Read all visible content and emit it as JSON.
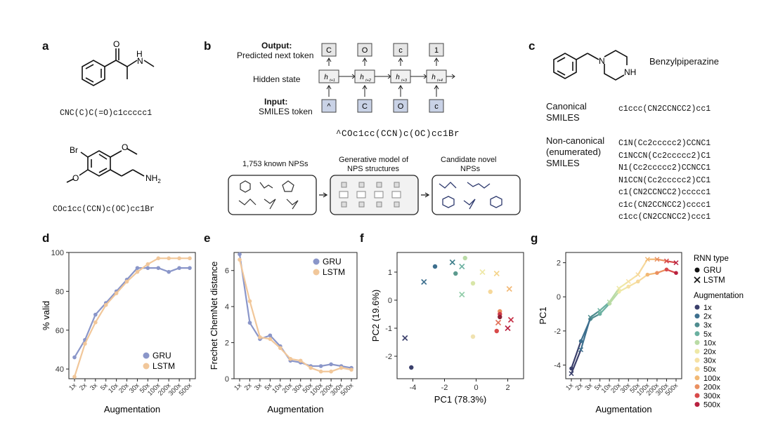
{
  "panels": {
    "a": {
      "label": "a",
      "mol1_smiles": "CNC(C)C(=O)c1ccccc1",
      "mol2_smiles": "COc1cc(CCN)c(OC)cc1Br",
      "mol2_atoms": {
        "br": "Br",
        "nh2": "NH",
        "nh2_sub": "2"
      },
      "mol1_atoms": {
        "o": "O",
        "nh": "H",
        "n": "N"
      }
    },
    "b": {
      "label": "b",
      "output_title": "Output:",
      "output_sub": "Predicted next token",
      "hidden_label": "Hidden state",
      "input_title": "Input:",
      "input_sub": "SMILES token",
      "output_tokens": [
        "C",
        "O",
        "c",
        "1"
      ],
      "input_tokens": [
        "^",
        "C",
        "O",
        "c"
      ],
      "hidden_tokens": [
        "h",
        "h",
        "h",
        "h"
      ],
      "hidden_subs": [
        "t+1",
        "t+2",
        "t+3",
        "t+4"
      ],
      "sequence": "^COc1cc(CCN)c(OC)cc1Br",
      "box1_title": "1,753 known NPSs",
      "box2_title_1": "Generative model of",
      "box2_title_2": "NPS structures",
      "box3_title_1": "Candidate novel",
      "box3_title_2": "NPSs"
    },
    "c": {
      "label": "c",
      "name": "Benzylpiperazine",
      "nh": "NH",
      "n": "N",
      "canonical_label_1": "Canonical",
      "canonical_label_2": "SMILES",
      "canonical_smiles": "c1ccc(CN2CCNCC2)cc1",
      "noncanonical_label_1": "Non-canonical",
      "noncanonical_label_2": "(enumerated)",
      "noncanonical_label_3": "SMILES",
      "enumerated": [
        "C1N(Cc2ccccc2)CCNC1",
        "C1NCCN(Cc2ccccc2)C1",
        "N1(Cc2ccccc2)CCNCC1",
        "N1CCN(Cc2ccccc2)CC1",
        "c1(CN2CCNCC2)ccccc1",
        "c1c(CN2CCNCC2)cccc1",
        "c1cc(CN2CCNCC2)ccc1"
      ]
    },
    "d": {
      "label": "d"
    },
    "e": {
      "label": "e"
    },
    "f": {
      "label": "f"
    },
    "g": {
      "label": "g"
    }
  },
  "chart_data": [
    {
      "panel": "d",
      "type": "line",
      "xlabel": "Augmentation",
      "ylabel": "% valid",
      "categories": [
        "1x",
        "2x",
        "3x",
        "5x",
        "10x",
        "20x",
        "30x",
        "50x",
        "100x",
        "200x",
        "300x",
        "500x"
      ],
      "ylim": [
        35,
        100
      ],
      "yticks": [
        40,
        60,
        80,
        100
      ],
      "series": [
        {
          "name": "GRU",
          "color": "#8a96c9",
          "values": [
            46,
            55,
            68,
            74,
            80,
            86,
            92,
            92,
            92,
            90,
            92,
            92
          ]
        },
        {
          "name": "LSTM",
          "color": "#f1c79a",
          "values": [
            36,
            53,
            64,
            73,
            79,
            85,
            90,
            94,
            97,
            97,
            97,
            97
          ]
        }
      ],
      "legend": "bottom-right"
    },
    {
      "panel": "e",
      "type": "line",
      "xlabel": "Augmentation",
      "ylabel": "Frechet ChemNet distance",
      "categories": [
        "1x",
        "2x",
        "3x",
        "5x",
        "10x",
        "20x",
        "30x",
        "50x",
        "100x",
        "200x",
        "300x",
        "500x"
      ],
      "ylim": [
        0,
        7
      ],
      "yticks": [
        0,
        2,
        4,
        6
      ],
      "series": [
        {
          "name": "GRU",
          "color": "#8a96c9",
          "values": [
            6.9,
            3.1,
            2.2,
            2.4,
            1.8,
            1.0,
            0.9,
            0.7,
            0.7,
            0.8,
            0.7,
            0.6
          ]
        },
        {
          "name": "LSTM",
          "color": "#f1c79a",
          "values": [
            6.6,
            4.3,
            2.3,
            2.2,
            1.7,
            1.1,
            1.0,
            0.6,
            0.4,
            0.4,
            0.6,
            0.5
          ]
        }
      ],
      "legend": "top-right"
    },
    {
      "panel": "f",
      "type": "scatter",
      "xlabel": "PC1 (78.3%)",
      "ylabel": "PC2 (19.6%)",
      "xlim": [
        -5,
        3
      ],
      "ylim": [
        -2.8,
        1.7
      ],
      "xticks": [
        -4,
        -2,
        0,
        2
      ],
      "yticks": [
        -2,
        -1,
        0,
        1
      ],
      "points": [
        {
          "x": -4.1,
          "y": -2.4,
          "m": "dot",
          "c": "#3a3f6b"
        },
        {
          "x": -4.5,
          "y": -1.35,
          "m": "x",
          "c": "#3a3f6b"
        },
        {
          "x": -2.6,
          "y": 1.2,
          "m": "dot",
          "c": "#3d6f8e"
        },
        {
          "x": -3.3,
          "y": 0.65,
          "m": "x",
          "c": "#3d6f8e"
        },
        {
          "x": -1.5,
          "y": 1.35,
          "m": "x",
          "c": "#3d7e8a"
        },
        {
          "x": -1.3,
          "y": 0.95,
          "m": "dot",
          "c": "#5c9a8e"
        },
        {
          "x": -0.9,
          "y": 1.2,
          "m": "x",
          "c": "#6ab0a0"
        },
        {
          "x": -0.9,
          "y": 0.2,
          "m": "x",
          "c": "#8fcca8"
        },
        {
          "x": -0.7,
          "y": 1.5,
          "m": "dot",
          "c": "#b9dba5"
        },
        {
          "x": -0.2,
          "y": 0.6,
          "m": "dot",
          "c": "#d8e6a8"
        },
        {
          "x": 0.4,
          "y": 1.0,
          "m": "x",
          "c": "#eee8a6"
        },
        {
          "x": -0.2,
          "y": -1.3,
          "m": "dot",
          "c": "#f0e2b0"
        },
        {
          "x": 0.9,
          "y": 0.3,
          "m": "dot",
          "c": "#f6d89a"
        },
        {
          "x": 1.3,
          "y": 0.95,
          "m": "x",
          "c": "#f4d48a"
        },
        {
          "x": 2.1,
          "y": 0.4,
          "m": "x",
          "c": "#f2b874"
        },
        {
          "x": 1.5,
          "y": -0.4,
          "m": "dot",
          "c": "#ea9060"
        },
        {
          "x": 1.4,
          "y": -0.8,
          "m": "x",
          "c": "#e27058"
        },
        {
          "x": 1.3,
          "y": -1.1,
          "m": "dot",
          "c": "#d84a4a"
        },
        {
          "x": 1.5,
          "y": -0.5,
          "m": "dot",
          "c": "#cf3a48"
        },
        {
          "x": 2.2,
          "y": -0.7,
          "m": "x",
          "c": "#c62f45"
        },
        {
          "x": 2.0,
          "y": -1.0,
          "m": "x",
          "c": "#b8203f"
        },
        {
          "x": 1.5,
          "y": -0.6,
          "m": "dot",
          "c": "#8e1f35"
        }
      ]
    },
    {
      "panel": "g",
      "type": "line",
      "xlabel": "Augmentation",
      "ylabel": "PC1",
      "categories": [
        "1x",
        "2x",
        "3x",
        "5x",
        "10x",
        "20x",
        "30x",
        "50x",
        "100x",
        "200x",
        "300x",
        "500x"
      ],
      "ylim": [
        -4.8,
        2.6
      ],
      "yticks": [
        -4,
        -2,
        0,
        2
      ],
      "series": [
        {
          "name": "GRU",
          "marker": "dot",
          "values": [
            -4.2,
            -2.6,
            -1.3,
            -1.0,
            -0.4,
            0.3,
            0.6,
            0.9,
            1.3,
            1.4,
            1.6,
            1.4
          ]
        },
        {
          "name": "LSTM",
          "marker": "x",
          "values": [
            -4.5,
            -3.1,
            -1.2,
            -0.8,
            -0.3,
            0.5,
            0.9,
            1.3,
            2.2,
            2.2,
            2.1,
            2.0
          ]
        }
      ],
      "colors": [
        "#3a3f6b",
        "#3d6f8e",
        "#4f8c8f",
        "#6ab0a0",
        "#b9dba5",
        "#eee8a6",
        "#f6e1a4",
        "#f6d89a",
        "#f2b874",
        "#ea9060",
        "#d84a4a",
        "#b8203f"
      ],
      "legend": {
        "title_type": "RNN type",
        "type_entries": [
          "GRU",
          "LSTM"
        ],
        "title_aug": "Augmentation",
        "aug_entries": [
          "1x",
          "2x",
          "3x",
          "5x",
          "10x",
          "20x",
          "30x",
          "50x",
          "100x",
          "200x",
          "300x",
          "500x"
        ]
      }
    }
  ]
}
